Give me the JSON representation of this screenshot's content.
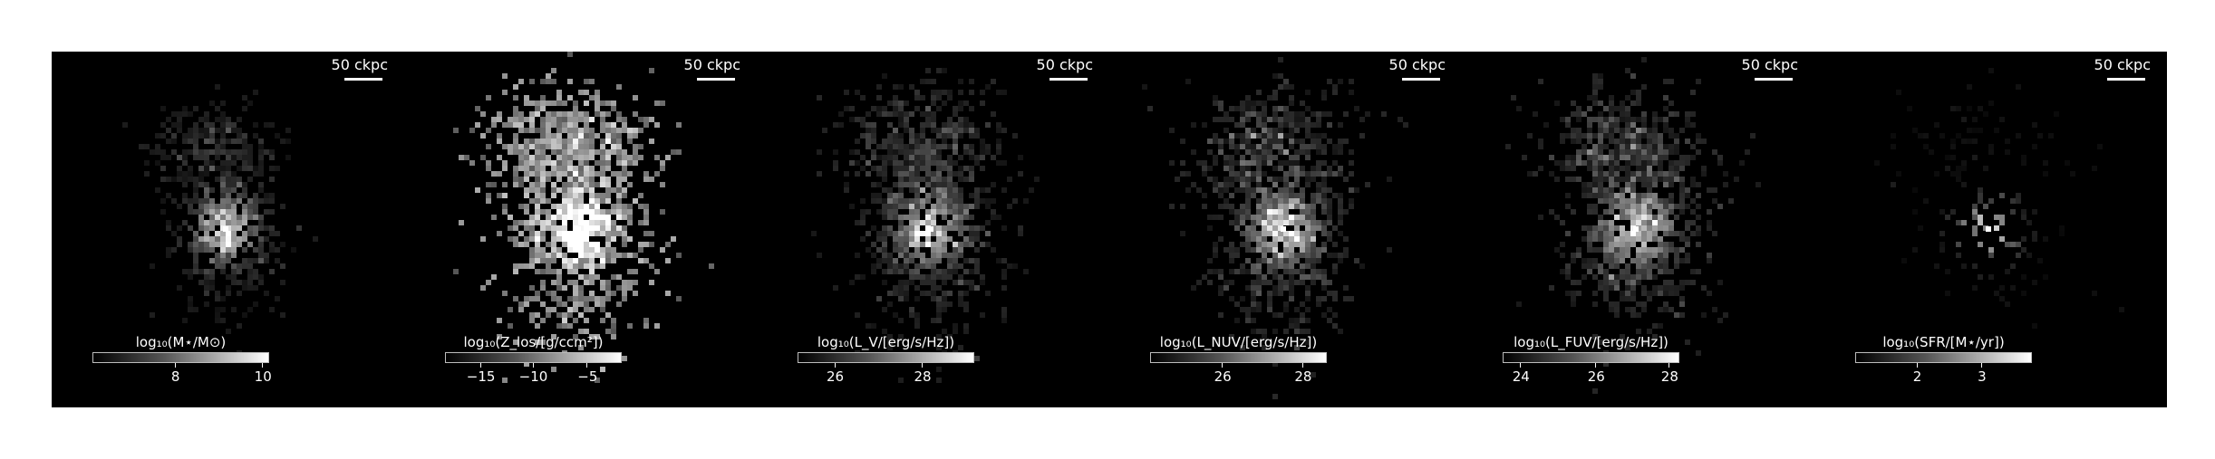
{
  "figure": {
    "background_color": "#ffffff",
    "panel_background": "#000000",
    "colormap": "gray",
    "panels": [
      {
        "scalebar_label": "50 ckpc",
        "colorbar_label": "log₁₀(M⋆/M⊙)",
        "colorbar_ticks": [
          "8",
          "10"
        ],
        "colorbar_tick_fractions": [
          0.47,
          0.97
        ],
        "map_style": "compact",
        "center_brightness": 1.0,
        "halo_brightness": 0.45
      },
      {
        "scalebar_label": "50 ckpc",
        "colorbar_label": "log₁₀(Z_los/[g/ccm²])",
        "colorbar_ticks": [
          "−15",
          "−10",
          "−5"
        ],
        "colorbar_tick_fractions": [
          0.2,
          0.5,
          0.81
        ],
        "map_style": "extended-bright",
        "center_brightness": 1.0,
        "halo_brightness": 0.9
      },
      {
        "scalebar_label": "50 ckpc",
        "colorbar_label": "log₁₀(L_V/[erg/s/Hz])",
        "colorbar_ticks": [
          "26",
          "28"
        ],
        "colorbar_tick_fractions": [
          0.21,
          0.71
        ],
        "map_style": "extended-dim",
        "center_brightness": 1.0,
        "halo_brightness": 0.55
      },
      {
        "scalebar_label": "50 ckpc",
        "colorbar_label": "log₁₀(L_NUV/[erg/s/Hz])",
        "colorbar_ticks": [
          "26",
          "28"
        ],
        "colorbar_tick_fractions": [
          0.41,
          0.87
        ],
        "map_style": "extended-dim",
        "center_brightness": 1.0,
        "halo_brightness": 0.6
      },
      {
        "scalebar_label": "50 ckpc",
        "colorbar_label": "log₁₀(L_FUV/[erg/s/Hz])",
        "colorbar_ticks": [
          "24",
          "26",
          "28"
        ],
        "colorbar_tick_fractions": [
          0.1,
          0.53,
          0.95
        ],
        "map_style": "extended-dim",
        "center_brightness": 1.0,
        "halo_brightness": 0.62
      },
      {
        "scalebar_label": "50 ckpc",
        "colorbar_label": "log₁₀(SFR/[M⋆/yr])",
        "colorbar_ticks": [
          "2",
          "3"
        ],
        "colorbar_tick_fractions": [
          0.35,
          0.72
        ],
        "map_style": "sparse",
        "center_brightness": 1.0,
        "halo_brightness": 0.25
      }
    ]
  }
}
